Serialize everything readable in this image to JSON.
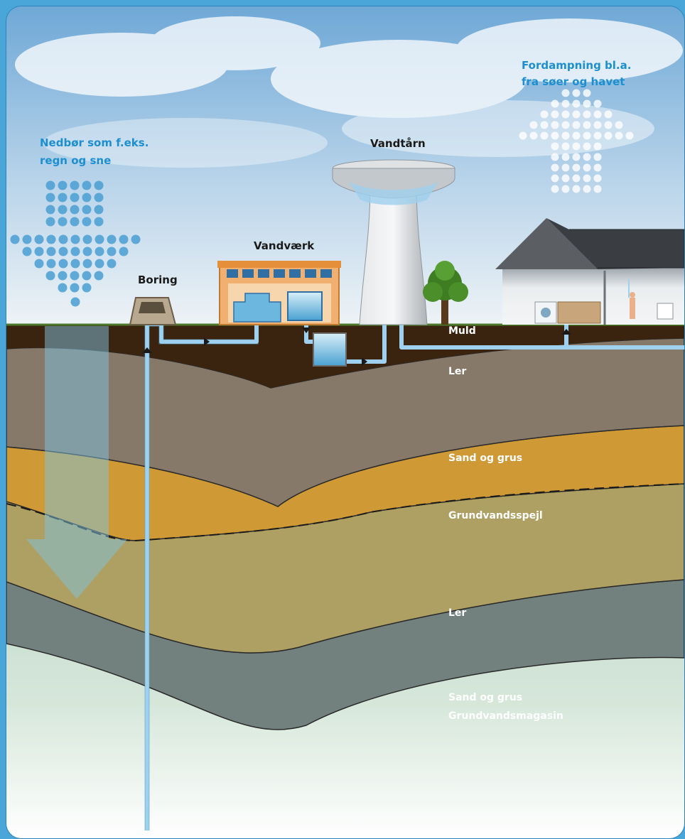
{
  "labels": {
    "precipitation_line1": "Nedbør som f.eks.",
    "precipitation_line2": "regn og sne",
    "evaporation_line1": "Fordampning bl.a.",
    "evaporation_line2": "fra søer og havet",
    "water_tower": "Vandtårn",
    "waterworks": "Vandværk",
    "borehole": "Boring",
    "topsoil": "Muld",
    "clay_upper": "Ler",
    "sand_gravel_upper": "Sand og grus",
    "water_table": "Grundvandsspejl",
    "clay_lower": "Ler",
    "sand_gravel_lower": "Sand og grus",
    "aquifer": "Grundvandsmagasin"
  },
  "colors": {
    "sky_top": "#6fa8d6",
    "sky_bottom": "#e4eef6",
    "topsoil": "#3a2410",
    "clay_upper": "#87796a",
    "sand_gravel": "#cf9a35",
    "saturated_zone": "#aea063",
    "clay_lower": "#72817e",
    "aquifer": "#c3dbc9",
    "pipe": "#9fd0ee",
    "label_blue": "#1d8fcf"
  },
  "icons": {
    "precipitation_arrow": "dotted-down-arrow",
    "evaporation_arrow": "dotted-up-arrow",
    "infiltration_arrow": "translucent-down-arrow"
  }
}
